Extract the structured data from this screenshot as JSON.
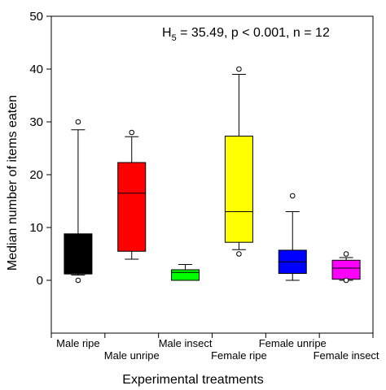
{
  "chart_data": {
    "type": "boxplot",
    "annotation": {
      "h_prefix": "H",
      "h_subscript": "5",
      "rest": " = 35.49, p < 0.001, n = 12"
    },
    "xlabel": "Experimental treatments",
    "ylabel": "Median number of items eaten",
    "ylim": [
      -10,
      50
    ],
    "y_ticks": [
      0,
      10,
      20,
      30,
      40,
      50
    ],
    "grid": false,
    "legend": "none",
    "categories": [
      "Male ripe",
      "Male unripe",
      "Male insect",
      "Female ripe",
      "Female unripe",
      "Female insect"
    ],
    "boxes": [
      {
        "category": "Male ripe",
        "color": "#000000",
        "whisker_low": 1,
        "q1": 1.2,
        "median": 1.5,
        "q3": 8.8,
        "whisker_high": 28.5,
        "outliers": [
          0,
          30
        ]
      },
      {
        "category": "Male unripe",
        "color": "#ff0000",
        "whisker_low": 4,
        "q1": 5.5,
        "median": 16.5,
        "q3": 22.3,
        "whisker_high": 27.2,
        "outliers": [
          28
        ]
      },
      {
        "category": "Male insect",
        "color": "#00ff00",
        "whisker_low": 0,
        "q1": 0,
        "median": 1.5,
        "q3": 2,
        "whisker_high": 3,
        "outliers": []
      },
      {
        "category": "Female ripe",
        "color": "#ffff00",
        "whisker_low": 5.8,
        "q1": 7.2,
        "median": 13,
        "q3": 27.3,
        "whisker_high": 39,
        "outliers": [
          5,
          40
        ]
      },
      {
        "category": "Female unripe",
        "color": "#0000ff",
        "whisker_low": 0,
        "q1": 1.3,
        "median": 3.5,
        "q3": 5.7,
        "whisker_high": 13,
        "outliers": [
          16
        ]
      },
      {
        "category": "Female insect",
        "color": "#ff00ff",
        "whisker_low": 0,
        "q1": 0.2,
        "median": 2.3,
        "q3": 3.8,
        "whisker_high": 4.3,
        "outliers": [
          0,
          5
        ]
      }
    ]
  }
}
